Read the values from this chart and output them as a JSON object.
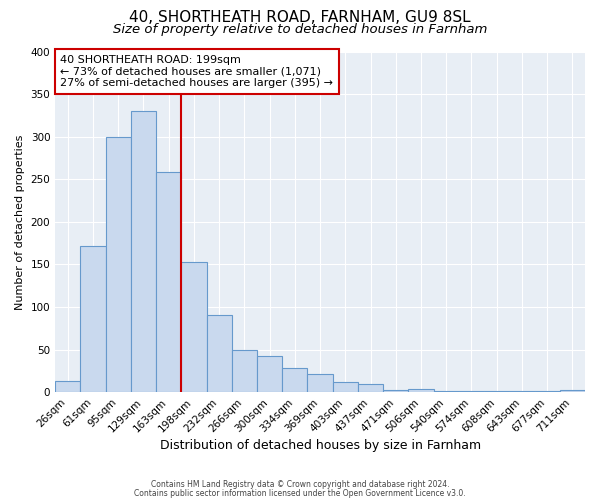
{
  "title1": "40, SHORTHEATH ROAD, FARNHAM, GU9 8SL",
  "title2": "Size of property relative to detached houses in Farnham",
  "xlabel": "Distribution of detached houses by size in Farnham",
  "ylabel": "Number of detached properties",
  "categories": [
    "26sqm",
    "61sqm",
    "95sqm",
    "129sqm",
    "163sqm",
    "198sqm",
    "232sqm",
    "266sqm",
    "300sqm",
    "334sqm",
    "369sqm",
    "403sqm",
    "437sqm",
    "471sqm",
    "506sqm",
    "540sqm",
    "574sqm",
    "608sqm",
    "643sqm",
    "677sqm",
    "711sqm"
  ],
  "values": [
    13,
    172,
    300,
    330,
    258,
    153,
    91,
    50,
    43,
    28,
    21,
    12,
    10,
    3,
    4,
    1,
    1,
    1,
    1,
    1,
    3
  ],
  "bar_color": "#c9d9ee",
  "bar_edge_color": "#6699cc",
  "vline_color": "#cc0000",
  "annotation_title": "40 SHORTHEATH ROAD: 199sqm",
  "annotation_line1": "← 73% of detached houses are smaller (1,071)",
  "annotation_line2": "27% of semi-detached houses are larger (395) →",
  "annotation_box_edge_color": "#cc0000",
  "footnote1": "Contains HM Land Registry data © Crown copyright and database right 2024.",
  "footnote2": "Contains public sector information licensed under the Open Government Licence v3.0.",
  "ylim": [
    0,
    400
  ],
  "yticks": [
    0,
    50,
    100,
    150,
    200,
    250,
    300,
    350,
    400
  ],
  "bg_color": "#e8eef5",
  "fig_bg_color": "#ffffff",
  "title1_fontsize": 11,
  "title2_fontsize": 9.5,
  "ylabel_fontsize": 8,
  "xlabel_fontsize": 9,
  "tick_fontsize": 7.5,
  "annot_fontsize": 8
}
